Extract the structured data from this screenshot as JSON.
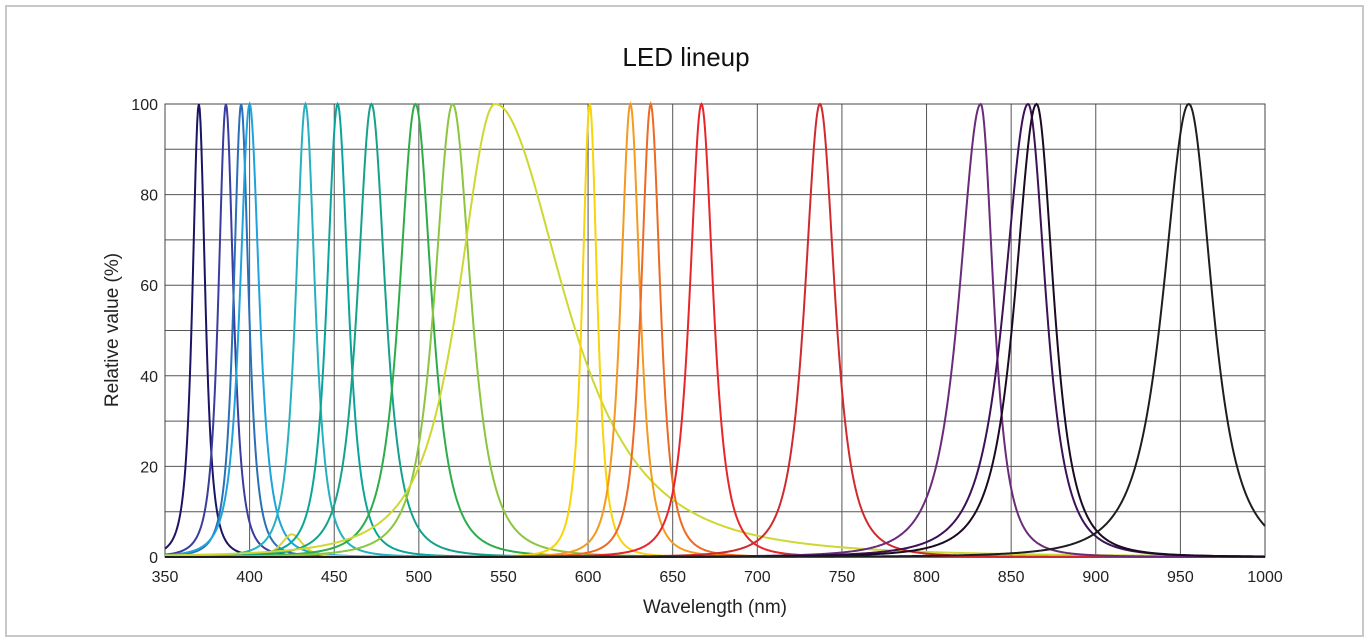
{
  "chart_data": {
    "type": "line",
    "title": "LED lineup",
    "xlabel": "Wavelength (nm)",
    "ylabel": "Relative value (%)",
    "xlim": [
      350,
      1000
    ],
    "ylim": [
      0,
      100
    ],
    "x_ticks": [
      "350",
      "400",
      "450",
      "500",
      "550",
      "600",
      "650",
      "700",
      "750",
      "800",
      "850",
      "900",
      "950",
      "1000"
    ],
    "y_ticks": [
      "0",
      "20",
      "40",
      "60",
      "80",
      "100"
    ],
    "grid": true,
    "series": [
      {
        "peak": 370,
        "hwhm": 6,
        "asym": 1.0,
        "color": "#1b1464"
      },
      {
        "peak": 386,
        "hwhm": 7,
        "asym": 1.0,
        "color": "#3a3d9e"
      },
      {
        "peak": 395,
        "hwhm": 7,
        "asym": 1.0,
        "color": "#2a6fb8"
      },
      {
        "peak": 400,
        "hwhm": 9,
        "asym": 1.0,
        "color": "#1fa3dc"
      },
      {
        "peak": 425,
        "hwhm": 10,
        "asym": 1.0,
        "amp": 5,
        "color": "#d9d23a"
      },
      {
        "peak": 433,
        "hwhm": 9,
        "asym": 1.0,
        "color": "#27b0bf"
      },
      {
        "peak": 452,
        "hwhm": 10,
        "asym": 1.0,
        "color": "#0aa59a"
      },
      {
        "peak": 472,
        "hwhm": 13,
        "asym": 1.0,
        "color": "#16a28a"
      },
      {
        "peak": 498,
        "hwhm": 15,
        "asym": 1.0,
        "color": "#2dad4a"
      },
      {
        "peak": 520,
        "hwhm": 17,
        "asym": 1.0,
        "color": "#8cc63f"
      },
      {
        "peak": 545,
        "hwhm": 34,
        "asym": 1.9,
        "color": "#cdd832"
      },
      {
        "peak": 601,
        "hwhm": 7,
        "asym": 1.0,
        "color": "#f7d40b"
      },
      {
        "peak": 625,
        "hwhm": 9,
        "asym": 1.0,
        "color": "#f39a1f"
      },
      {
        "peak": 637,
        "hwhm": 9,
        "asym": 1.0,
        "color": "#ee6a22"
      },
      {
        "peak": 667,
        "hwhm": 11,
        "asym": 1.0,
        "color": "#e8262a"
      },
      {
        "peak": 737,
        "hwhm": 14,
        "asym": 1.0,
        "color": "#cf2a2e"
      },
      {
        "peak": 832,
        "hwhm": 20,
        "asym": 0.6,
        "color": "#6a2c7a"
      },
      {
        "peak": 860,
        "hwhm": 22,
        "asym": 0.75,
        "color": "#3c1156"
      },
      {
        "peak": 865,
        "hwhm": 20,
        "asym": 0.8,
        "color": "#1a0a22"
      },
      {
        "peak": 955,
        "hwhm": 24,
        "asym": 0.9,
        "color": "#1e1e1e"
      }
    ]
  }
}
